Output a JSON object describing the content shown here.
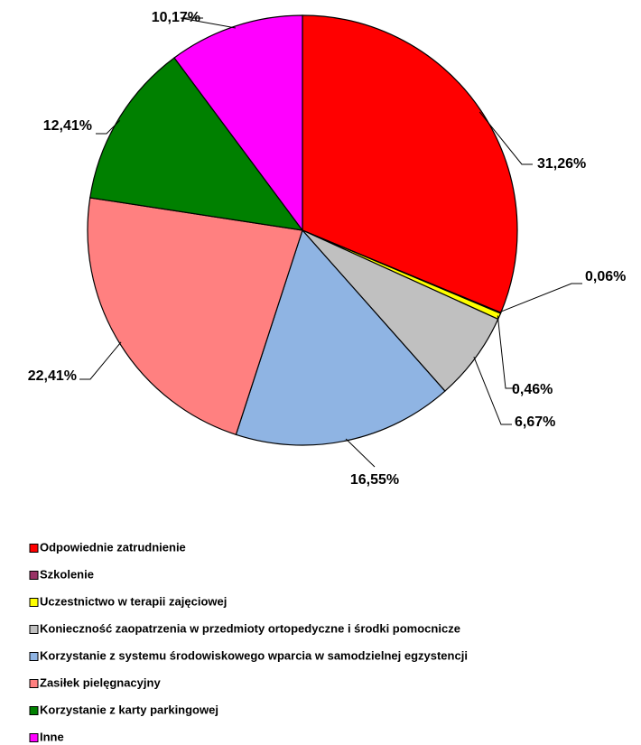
{
  "chart_data": {
    "type": "pie",
    "categories": [
      "Odpowiednie zatrudnienie",
      "Szkolenie",
      "Uczestnictwo w terapii zajęciowej",
      "Konieczność zaopatrzenia w przedmioty ortopedyczne i  środki pomocnicze",
      "Korzystanie z systemu środowiskowego wparcia w samodzielnej egzystencji",
      "Zasiłek pielęgnacyjny",
      "Korzystanie z karty parkingowej",
      "Inne"
    ],
    "values": [
      31.26,
      0.06,
      0.46,
      6.67,
      16.55,
      22.41,
      12.41,
      10.17
    ],
    "value_labels": [
      "31,26%",
      "0,06%",
      "0,46%",
      "6,67%",
      "16,55%",
      "22,41%",
      "12,41%",
      "10,17%"
    ],
    "colors": [
      "#ff0000",
      "#993366",
      "#ffff00",
      "#c0c0c0",
      "#8fb4e3",
      "#ff8080",
      "#008000",
      "#ff00ff"
    ],
    "legend": "bottom"
  }
}
